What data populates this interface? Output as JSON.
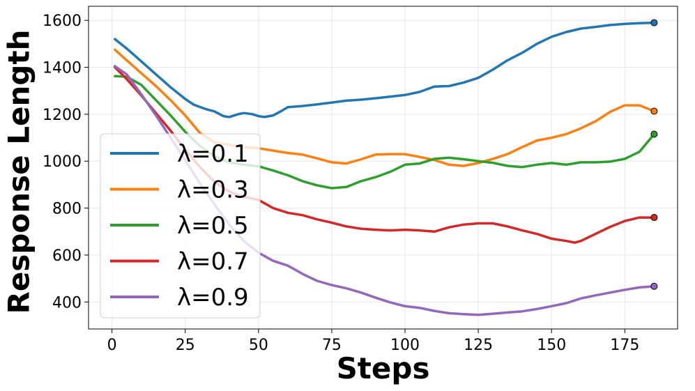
{
  "chart_data": {
    "type": "line",
    "xlabel": "Steps",
    "ylabel": "Response Length",
    "xlim": [
      -8,
      193
    ],
    "ylim": [
      285,
      1660
    ],
    "x_ticks": [
      0,
      25,
      50,
      75,
      100,
      125,
      150,
      175
    ],
    "y_ticks": [
      400,
      600,
      800,
      1000,
      1200,
      1400,
      1600
    ],
    "grid": true,
    "legend_position": "lower-left",
    "series": [
      {
        "name": "λ=0.1",
        "color": "#1f77b4",
        "points": [
          [
            1,
            1520
          ],
          [
            5,
            1480
          ],
          [
            10,
            1425
          ],
          [
            15,
            1370
          ],
          [
            20,
            1315
          ],
          [
            25,
            1265
          ],
          [
            28,
            1240
          ],
          [
            32,
            1222
          ],
          [
            35,
            1212
          ],
          [
            38,
            1192
          ],
          [
            40,
            1188
          ],
          [
            43,
            1200
          ],
          [
            45,
            1205
          ],
          [
            48,
            1200
          ],
          [
            50,
            1192
          ],
          [
            52,
            1188
          ],
          [
            55,
            1195
          ],
          [
            58,
            1215
          ],
          [
            60,
            1230
          ],
          [
            65,
            1235
          ],
          [
            70,
            1242
          ],
          [
            75,
            1250
          ],
          [
            80,
            1258
          ],
          [
            85,
            1262
          ],
          [
            90,
            1268
          ],
          [
            95,
            1275
          ],
          [
            100,
            1282
          ],
          [
            105,
            1295
          ],
          [
            110,
            1318
          ],
          [
            115,
            1320
          ],
          [
            120,
            1335
          ],
          [
            125,
            1355
          ],
          [
            130,
            1390
          ],
          [
            135,
            1430
          ],
          [
            140,
            1462
          ],
          [
            145,
            1500
          ],
          [
            150,
            1530
          ],
          [
            155,
            1550
          ],
          [
            160,
            1565
          ],
          [
            165,
            1572
          ],
          [
            170,
            1580
          ],
          [
            175,
            1585
          ],
          [
            180,
            1588
          ],
          [
            185,
            1590
          ]
        ],
        "end_value": 1590
      },
      {
        "name": "λ=0.3",
        "color": "#ff7f0e",
        "points": [
          [
            1,
            1475
          ],
          [
            5,
            1430
          ],
          [
            10,
            1375
          ],
          [
            15,
            1320
          ],
          [
            20,
            1260
          ],
          [
            25,
            1195
          ],
          [
            30,
            1120
          ],
          [
            35,
            1080
          ],
          [
            40,
            1070
          ],
          [
            45,
            1060
          ],
          [
            50,
            1055
          ],
          [
            55,
            1045
          ],
          [
            60,
            1035
          ],
          [
            65,
            1028
          ],
          [
            70,
            1012
          ],
          [
            75,
            995
          ],
          [
            80,
            990
          ],
          [
            85,
            1008
          ],
          [
            90,
            1028
          ],
          [
            95,
            1030
          ],
          [
            100,
            1030
          ],
          [
            105,
            1018
          ],
          [
            110,
            1005
          ],
          [
            115,
            985
          ],
          [
            120,
            980
          ],
          [
            125,
            992
          ],
          [
            130,
            1010
          ],
          [
            135,
            1030
          ],
          [
            140,
            1060
          ],
          [
            145,
            1088
          ],
          [
            150,
            1100
          ],
          [
            155,
            1115
          ],
          [
            160,
            1140
          ],
          [
            165,
            1170
          ],
          [
            170,
            1210
          ],
          [
            175,
            1238
          ],
          [
            180,
            1238
          ],
          [
            185,
            1213
          ]
        ],
        "end_value": 1213
      },
      {
        "name": "λ=0.5",
        "color": "#2ca02c",
        "points": [
          [
            1,
            1362
          ],
          [
            5,
            1360
          ],
          [
            10,
            1325
          ],
          [
            15,
            1260
          ],
          [
            20,
            1195
          ],
          [
            25,
            1125
          ],
          [
            30,
            1065
          ],
          [
            35,
            1020
          ],
          [
            40,
            995
          ],
          [
            45,
            985
          ],
          [
            50,
            978
          ],
          [
            55,
            960
          ],
          [
            60,
            940
          ],
          [
            65,
            915
          ],
          [
            70,
            897
          ],
          [
            75,
            885
          ],
          [
            80,
            890
          ],
          [
            85,
            915
          ],
          [
            90,
            932
          ],
          [
            95,
            955
          ],
          [
            100,
            985
          ],
          [
            105,
            990
          ],
          [
            110,
            1010
          ],
          [
            115,
            1015
          ],
          [
            120,
            1008
          ],
          [
            125,
            1000
          ],
          [
            130,
            993
          ],
          [
            135,
            980
          ],
          [
            140,
            975
          ],
          [
            145,
            985
          ],
          [
            150,
            992
          ],
          [
            155,
            985
          ],
          [
            160,
            995
          ],
          [
            165,
            995
          ],
          [
            170,
            998
          ],
          [
            175,
            1010
          ],
          [
            180,
            1040
          ],
          [
            185,
            1115
          ]
        ],
        "end_value": 1115
      },
      {
        "name": "λ=0.7",
        "color": "#d62728",
        "points": [
          [
            1,
            1400
          ],
          [
            5,
            1350
          ],
          [
            10,
            1280
          ],
          [
            15,
            1205
          ],
          [
            20,
            1130
          ],
          [
            25,
            1050
          ],
          [
            30,
            975
          ],
          [
            35,
            912
          ],
          [
            40,
            870
          ],
          [
            45,
            848
          ],
          [
            50,
            835
          ],
          [
            55,
            800
          ],
          [
            60,
            780
          ],
          [
            65,
            770
          ],
          [
            70,
            752
          ],
          [
            75,
            738
          ],
          [
            80,
            722
          ],
          [
            85,
            712
          ],
          [
            90,
            708
          ],
          [
            95,
            705
          ],
          [
            100,
            708
          ],
          [
            105,
            705
          ],
          [
            110,
            700
          ],
          [
            115,
            718
          ],
          [
            120,
            730
          ],
          [
            125,
            735
          ],
          [
            130,
            735
          ],
          [
            135,
            722
          ],
          [
            140,
            705
          ],
          [
            145,
            690
          ],
          [
            150,
            670
          ],
          [
            155,
            660
          ],
          [
            158,
            653
          ],
          [
            160,
            660
          ],
          [
            165,
            690
          ],
          [
            170,
            720
          ],
          [
            175,
            745
          ],
          [
            180,
            760
          ],
          [
            185,
            760
          ]
        ],
        "end_value": 760
      },
      {
        "name": "λ=0.9",
        "color": "#9467bd",
        "points": [
          [
            1,
            1405
          ],
          [
            5,
            1370
          ],
          [
            10,
            1285
          ],
          [
            15,
            1195
          ],
          [
            20,
            1100
          ],
          [
            25,
            1005
          ],
          [
            30,
            905
          ],
          [
            35,
            815
          ],
          [
            40,
            730
          ],
          [
            45,
            660
          ],
          [
            50,
            610
          ],
          [
            55,
            575
          ],
          [
            60,
            555
          ],
          [
            65,
            520
          ],
          [
            70,
            490
          ],
          [
            75,
            472
          ],
          [
            80,
            458
          ],
          [
            85,
            440
          ],
          [
            90,
            418
          ],
          [
            95,
            398
          ],
          [
            100,
            382
          ],
          [
            105,
            375
          ],
          [
            110,
            362
          ],
          [
            115,
            352
          ],
          [
            120,
            348
          ],
          [
            125,
            345
          ],
          [
            130,
            350
          ],
          [
            135,
            355
          ],
          [
            140,
            360
          ],
          [
            145,
            370
          ],
          [
            150,
            382
          ],
          [
            155,
            395
          ],
          [
            160,
            415
          ],
          [
            165,
            428
          ],
          [
            170,
            440
          ],
          [
            175,
            452
          ],
          [
            180,
            462
          ],
          [
            185,
            467
          ]
        ],
        "end_value": 467
      }
    ]
  }
}
